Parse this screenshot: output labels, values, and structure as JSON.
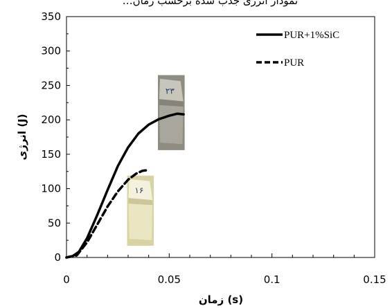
{
  "chart_data": {
    "type": "line",
    "title": "…نمودار انرژی جذب شده برحسب زمان",
    "xlabel": "زمان (s)",
    "ylabel": "انرژی (J)",
    "xlim": [
      0,
      0.15
    ],
    "ylim": [
      0,
      350
    ],
    "xticks": [
      0,
      0.05,
      0.1,
      0.15
    ],
    "xtick_labels": [
      "0",
      "0.05",
      "0.1",
      "0.15"
    ],
    "yticks": [
      0,
      50,
      100,
      150,
      200,
      250,
      300,
      350
    ],
    "ytick_labels": [
      "0",
      "50",
      "100",
      "150",
      "200",
      "250",
      "300",
      "350"
    ],
    "grid": false,
    "legend_position": "top-right",
    "series": [
      {
        "name": "PUR+1%SiC",
        "style": "solid",
        "color": "#000000",
        "x": [
          0.0,
          0.003,
          0.006,
          0.01,
          0.015,
          0.02,
          0.025,
          0.03,
          0.035,
          0.04,
          0.045,
          0.05,
          0.054,
          0.057
        ],
        "y": [
          0,
          2,
          8,
          28,
          62,
          98,
          133,
          160,
          180,
          193,
          201,
          206,
          209,
          208
        ]
      },
      {
        "name": "PUR",
        "style": "dashed",
        "color": "#000000",
        "x": [
          0.0,
          0.005,
          0.01,
          0.015,
          0.02,
          0.025,
          0.03,
          0.034,
          0.037,
          0.04
        ],
        "y": [
          0,
          3,
          22,
          48,
          74,
          96,
          113,
          122,
          126,
          127
        ]
      }
    ],
    "images": [
      {
        "name": "specimen-photo-sic",
        "caption": "۲۳",
        "x_range": [
          0.0445,
          0.0575
        ],
        "y_range": [
          156,
          265
        ],
        "palette": [
          "#8f8d82",
          "#a9a79b",
          "#6f6d63",
          "#c8c6bb"
        ]
      },
      {
        "name": "specimen-photo-pur",
        "caption": "۱۶",
        "x_range": [
          0.0295,
          0.0425
        ],
        "y_range": [
          17,
          119
        ],
        "palette": [
          "#d9d3a4",
          "#ebe6c2",
          "#b8b07d",
          "#f4f1dc"
        ]
      }
    ]
  }
}
